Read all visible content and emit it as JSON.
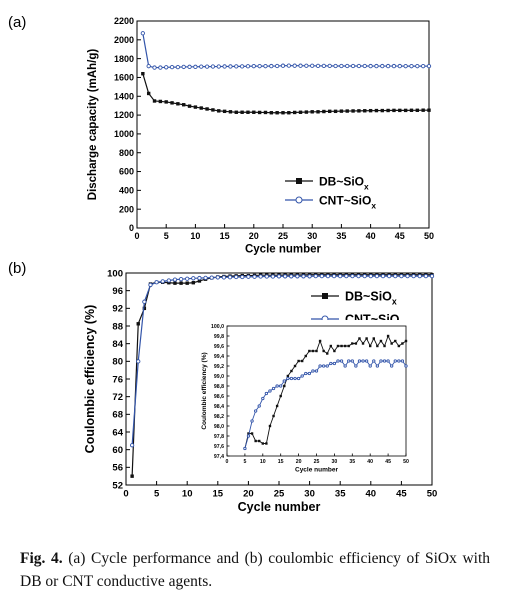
{
  "panel_a_label": "(a)",
  "panel_b_label": "(b)",
  "caption": {
    "prefix": "Fig. 4.",
    "text": "(a) Cycle performance and (b) coulombic efficiency of SiOx with DB or CNT conductive agents."
  },
  "colors": {
    "db": "#111111",
    "cnt": "#3355aa"
  },
  "chart_data": [
    {
      "type": "line",
      "panel": "(a)",
      "xlabel": "Cycle number",
      "ylabel": "Discharge capacity (mAh/g)",
      "xlim": [
        0,
        50
      ],
      "ylim": [
        0,
        2200
      ],
      "xticks": [
        "0",
        "5",
        "10",
        "15",
        "20",
        "25",
        "30",
        "35",
        "40",
        "45",
        "50"
      ],
      "yticks": [
        "0",
        "200",
        "400",
        "600",
        "800",
        "1000",
        "1200",
        "1400",
        "1600",
        "1800",
        "2000",
        "2200"
      ],
      "legend_position": "bottom-right",
      "x": [
        1,
        2,
        3,
        4,
        5,
        6,
        7,
        8,
        9,
        10,
        11,
        12,
        13,
        14,
        15,
        16,
        17,
        18,
        19,
        20,
        21,
        22,
        23,
        24,
        25,
        26,
        27,
        28,
        29,
        30,
        31,
        32,
        33,
        34,
        35,
        36,
        37,
        38,
        39,
        40,
        41,
        42,
        43,
        44,
        45,
        46,
        47,
        48,
        49,
        50
      ],
      "series": [
        {
          "name": "DB~SiO",
          "subscript": "x",
          "marker": "square",
          "values": [
            1640,
            1430,
            1350,
            1345,
            1340,
            1330,
            1320,
            1310,
            1295,
            1285,
            1275,
            1265,
            1255,
            1245,
            1240,
            1235,
            1230,
            1230,
            1230,
            1230,
            1228,
            1228,
            1225,
            1225,
            1225,
            1225,
            1228,
            1230,
            1232,
            1235,
            1235,
            1238,
            1240,
            1240,
            1242,
            1243,
            1244,
            1245,
            1246,
            1247,
            1248,
            1248,
            1249,
            1250,
            1250,
            1250,
            1251,
            1251,
            1252,
            1252
          ]
        },
        {
          "name": "CNT~SiO",
          "subscript": "x",
          "marker": "circle",
          "values": [
            2070,
            1720,
            1705,
            1705,
            1708,
            1710,
            1710,
            1712,
            1713,
            1713,
            1715,
            1715,
            1716,
            1716,
            1717,
            1717,
            1718,
            1718,
            1719,
            1720,
            1720,
            1720,
            1721,
            1722,
            1725,
            1726,
            1725,
            1725,
            1724,
            1724,
            1723,
            1723,
            1723,
            1722,
            1722,
            1722,
            1722,
            1722,
            1722,
            1721,
            1721,
            1721,
            1721,
            1721,
            1721,
            1720,
            1720,
            1720,
            1720,
            1720
          ]
        }
      ]
    },
    {
      "type": "line",
      "panel": "(b)",
      "xlabel": "Cycle number",
      "ylabel": "Coulombic efficiency (%)",
      "xlim": [
        0,
        50
      ],
      "ylim": [
        52,
        100
      ],
      "xticks": [
        "0",
        "5",
        "10",
        "15",
        "20",
        "25",
        "30",
        "35",
        "40",
        "45",
        "50"
      ],
      "yticks": [
        "52",
        "56",
        "60",
        "64",
        "68",
        "72",
        "76",
        "80",
        "84",
        "88",
        "92",
        "96",
        "100"
      ],
      "legend_position": "top-right",
      "x": [
        1,
        2,
        3,
        4,
        5,
        6,
        7,
        8,
        9,
        10,
        11,
        12,
        13,
        14,
        15,
        16,
        17,
        18,
        19,
        20,
        21,
        22,
        23,
        24,
        25,
        26,
        27,
        28,
        29,
        30,
        31,
        32,
        33,
        34,
        35,
        36,
        37,
        38,
        39,
        40,
        41,
        42,
        43,
        44,
        45,
        46,
        47,
        48,
        49,
        50
      ],
      "series": [
        {
          "name": "DB~SiO",
          "subscript": "x",
          "marker": "square",
          "values": [
            54,
            88.5,
            92,
            97.5,
            97.9,
            97.9,
            97.8,
            97.7,
            97.7,
            97.7,
            97.8,
            98.2,
            98.6,
            98.9,
            99.1,
            99.2,
            99.3,
            99.35,
            99.4,
            99.4,
            99.45,
            99.5,
            99.5,
            99.5,
            99.5,
            99.55,
            99.55,
            99.55,
            99.55,
            99.6,
            99.6,
            99.6,
            99.6,
            99.6,
            99.6,
            99.6,
            99.6,
            99.6,
            99.6,
            99.6,
            99.6,
            99.6,
            99.6,
            99.6,
            99.6,
            99.6,
            99.6,
            99.6,
            99.6,
            99.6
          ]
        },
        {
          "name": "CNT~SiO",
          "subscript": "x",
          "marker": "circle",
          "values": [
            61,
            80,
            93.5,
            97.3,
            97.9,
            98.1,
            98.3,
            98.5,
            98.6,
            98.7,
            98.8,
            98.85,
            98.9,
            98.95,
            99.0,
            99.0,
            99.05,
            99.1,
            99.1,
            99.15,
            99.15,
            99.2,
            99.2,
            99.2,
            99.25,
            99.25,
            99.25,
            99.25,
            99.25,
            99.25,
            99.3,
            99.3,
            99.3,
            99.3,
            99.3,
            99.3,
            99.3,
            99.3,
            99.3,
            99.3,
            99.3,
            99.3,
            99.3,
            99.3,
            99.3,
            99.3,
            99.3,
            99.3,
            99.3,
            99.3
          ]
        }
      ]
    },
    {
      "type": "line",
      "panel": "(b) inset",
      "xlabel": "Cycle number",
      "ylabel": "Coulombic efficiency (%)",
      "xlim": [
        0,
        50
      ],
      "ylim": [
        97.4,
        100.0
      ],
      "xticks": [
        "0",
        "5",
        "10",
        "15",
        "20",
        "25",
        "30",
        "35",
        "40",
        "45",
        "50"
      ],
      "yticks": [
        "97,4",
        "97,6",
        "97,8",
        "98,0",
        "98,2",
        "98,4",
        "98,6",
        "98,8",
        "99,0",
        "99,2",
        "99,4",
        "99,6",
        "99,8",
        "100,0"
      ],
      "x": [
        5,
        6,
        7,
        8,
        9,
        10,
        11,
        12,
        13,
        14,
        15,
        16,
        17,
        18,
        19,
        20,
        21,
        22,
        23,
        24,
        25,
        26,
        27,
        28,
        29,
        30,
        31,
        32,
        33,
        34,
        35,
        36,
        37,
        38,
        39,
        40,
        41,
        42,
        43,
        44,
        45,
        46,
        47,
        48,
        49,
        50
      ],
      "series": [
        {
          "name": "DB~SiO",
          "subscript": "x",
          "marker": "square",
          "values": [
            97.55,
            97.85,
            97.85,
            97.7,
            97.7,
            97.65,
            97.65,
            98.0,
            98.2,
            98.4,
            98.6,
            98.8,
            99.0,
            99.1,
            99.2,
            99.3,
            99.3,
            99.4,
            99.5,
            99.5,
            99.5,
            99.7,
            99.5,
            99.45,
            99.6,
            99.5,
            99.6,
            99.6,
            99.6,
            99.6,
            99.65,
            99.65,
            99.75,
            99.65,
            99.75,
            99.6,
            99.75,
            99.6,
            99.7,
            99.6,
            99.8,
            99.65,
            99.7,
            99.6,
            99.65,
            99.7
          ]
        },
        {
          "name": "CNT~SiO",
          "subscript": "x",
          "marker": "circle",
          "values": [
            97.55,
            97.8,
            98.1,
            98.3,
            98.4,
            98.55,
            98.65,
            98.7,
            98.75,
            98.8,
            98.8,
            98.9,
            98.95,
            98.95,
            98.95,
            98.95,
            99.0,
            99.05,
            99.05,
            99.1,
            99.1,
            99.2,
            99.2,
            99.2,
            99.25,
            99.25,
            99.3,
            99.3,
            99.2,
            99.3,
            99.3,
            99.2,
            99.3,
            99.3,
            99.3,
            99.2,
            99.3,
            99.2,
            99.3,
            99.3,
            99.3,
            99.2,
            99.3,
            99.3,
            99.3,
            99.2
          ]
        }
      ]
    }
  ]
}
